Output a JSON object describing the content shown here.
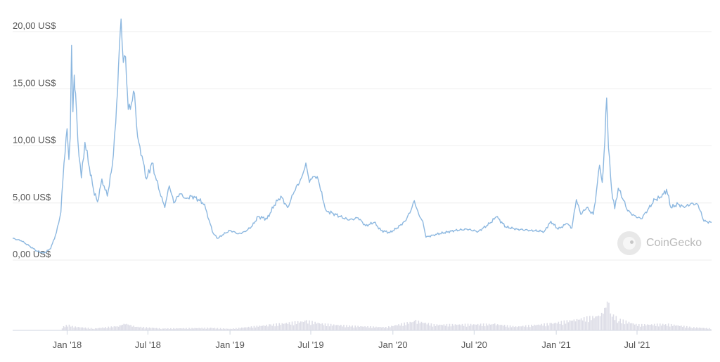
{
  "chart_data": {
    "type": "line",
    "title": "",
    "xlabel": "",
    "ylabel": "",
    "ylim": [
      0,
      20
    ],
    "y_ticks": [
      "0,00 US$",
      "5,00 US$",
      "10,00 US$",
      "15,00 US$",
      "20,00 US$"
    ],
    "y_tick_values": [
      0,
      5,
      10,
      15,
      20
    ],
    "x_ticks": [
      "Jan '18",
      "Jul '18",
      "Jan '19",
      "Jul '19",
      "Jan '20",
      "Jul '20",
      "Jan '21",
      "Jul '21"
    ],
    "x_tick_dates": [
      "2018-01-01",
      "2018-07-01",
      "2019-01-01",
      "2019-07-01",
      "2020-01-01",
      "2020-07-01",
      "2021-01-01",
      "2021-07-01"
    ],
    "x_range": [
      "2017-09-01",
      "2021-12-15"
    ],
    "grid": true,
    "colors": {
      "price_line": "#8db8e0",
      "volume_bars": "#dcdce6",
      "grid": "#eeeeee"
    },
    "series": [
      {
        "values_label": "price",
        "points": [
          [
            "2017-09-01",
            1.9
          ],
          [
            "2017-09-20",
            1.7
          ],
          [
            "2017-10-10",
            1.2
          ],
          [
            "2017-10-25",
            0.8
          ],
          [
            "2017-11-10",
            0.6
          ],
          [
            "2017-11-25",
            1.0
          ],
          [
            "2017-12-08",
            2.4
          ],
          [
            "2017-12-18",
            4.2
          ],
          [
            "2017-12-25",
            8.5
          ],
          [
            "2018-01-01",
            11.5
          ],
          [
            "2018-01-05",
            8.8
          ],
          [
            "2018-01-08",
            10.8
          ],
          [
            "2018-01-11",
            18.8
          ],
          [
            "2018-01-14",
            13.0
          ],
          [
            "2018-01-17",
            16.2
          ],
          [
            "2018-01-20",
            14.6
          ],
          [
            "2018-01-25",
            10.5
          ],
          [
            "2018-02-02",
            7.2
          ],
          [
            "2018-02-10",
            10.3
          ],
          [
            "2018-02-20",
            8.1
          ],
          [
            "2018-03-01",
            6.2
          ],
          [
            "2018-03-10",
            5.1
          ],
          [
            "2018-03-20",
            7.1
          ],
          [
            "2018-04-01",
            5.6
          ],
          [
            "2018-04-12",
            8.2
          ],
          [
            "2018-04-20",
            12.0
          ],
          [
            "2018-04-26",
            16.8
          ],
          [
            "2018-05-02",
            21.1
          ],
          [
            "2018-05-07",
            17.3
          ],
          [
            "2018-05-12",
            17.8
          ],
          [
            "2018-05-18",
            13.2
          ],
          [
            "2018-05-25",
            13.7
          ],
          [
            "2018-06-01",
            14.6
          ],
          [
            "2018-06-08",
            10.8
          ],
          [
            "2018-06-18",
            9.1
          ],
          [
            "2018-06-28",
            7.1
          ],
          [
            "2018-07-10",
            8.5
          ],
          [
            "2018-07-20",
            7.0
          ],
          [
            "2018-07-30",
            5.6
          ],
          [
            "2018-08-08",
            4.6
          ],
          [
            "2018-08-18",
            6.5
          ],
          [
            "2018-08-28",
            5.0
          ],
          [
            "2018-09-10",
            5.8
          ],
          [
            "2018-09-25",
            5.4
          ],
          [
            "2018-10-08",
            5.6
          ],
          [
            "2018-10-22",
            5.3
          ],
          [
            "2018-11-05",
            4.9
          ],
          [
            "2018-11-15",
            3.5
          ],
          [
            "2018-11-25",
            2.3
          ],
          [
            "2018-12-05",
            1.9
          ],
          [
            "2018-12-15",
            2.2
          ],
          [
            "2019-01-01",
            2.6
          ],
          [
            "2019-01-20",
            2.3
          ],
          [
            "2019-02-05",
            2.5
          ],
          [
            "2019-02-20",
            3.0
          ],
          [
            "2019-03-05",
            3.8
          ],
          [
            "2019-03-25",
            3.6
          ],
          [
            "2019-04-10",
            4.8
          ],
          [
            "2019-04-25",
            5.6
          ],
          [
            "2019-05-10",
            4.6
          ],
          [
            "2019-05-25",
            6.0
          ],
          [
            "2019-06-10",
            7.2
          ],
          [
            "2019-06-20",
            8.5
          ],
          [
            "2019-06-28",
            6.8
          ],
          [
            "2019-07-08",
            7.3
          ],
          [
            "2019-07-18",
            7.0
          ],
          [
            "2019-07-28",
            5.3
          ],
          [
            "2019-08-05",
            4.3
          ],
          [
            "2019-08-20",
            4.1
          ],
          [
            "2019-09-05",
            3.8
          ],
          [
            "2019-09-25",
            3.5
          ],
          [
            "2019-10-15",
            3.7
          ],
          [
            "2019-11-01",
            3.0
          ],
          [
            "2019-11-20",
            3.3
          ],
          [
            "2019-12-05",
            2.6
          ],
          [
            "2019-12-25",
            2.4
          ],
          [
            "2020-01-10",
            2.8
          ],
          [
            "2020-01-28",
            3.4
          ],
          [
            "2020-02-10",
            4.3
          ],
          [
            "2020-02-18",
            5.2
          ],
          [
            "2020-02-28",
            4.0
          ],
          [
            "2020-03-08",
            3.4
          ],
          [
            "2020-03-15",
            2.0
          ],
          [
            "2020-04-01",
            2.2
          ],
          [
            "2020-04-25",
            2.4
          ],
          [
            "2020-05-20",
            2.6
          ],
          [
            "2020-06-15",
            2.7
          ],
          [
            "2020-07-10",
            2.5
          ],
          [
            "2020-08-05",
            3.2
          ],
          [
            "2020-08-20",
            3.8
          ],
          [
            "2020-09-10",
            2.9
          ],
          [
            "2020-10-05",
            2.7
          ],
          [
            "2020-11-05",
            2.6
          ],
          [
            "2020-12-05",
            2.5
          ],
          [
            "2020-12-20",
            3.4
          ],
          [
            "2021-01-05",
            2.7
          ],
          [
            "2021-01-25",
            3.2
          ],
          [
            "2021-02-05",
            2.8
          ],
          [
            "2021-02-15",
            5.3
          ],
          [
            "2021-02-25",
            4.0
          ],
          [
            "2021-03-10",
            4.6
          ],
          [
            "2021-03-25",
            4.0
          ],
          [
            "2021-04-01",
            6.0
          ],
          [
            "2021-04-08",
            8.3
          ],
          [
            "2021-04-14",
            6.8
          ],
          [
            "2021-04-20",
            10.5
          ],
          [
            "2021-04-24",
            14.2
          ],
          [
            "2021-04-28",
            9.8
          ],
          [
            "2021-05-05",
            6.2
          ],
          [
            "2021-05-12",
            4.5
          ],
          [
            "2021-05-20",
            6.3
          ],
          [
            "2021-06-01",
            5.2
          ],
          [
            "2021-06-10",
            4.3
          ],
          [
            "2021-06-25",
            3.9
          ],
          [
            "2021-07-10",
            3.6
          ],
          [
            "2021-07-25",
            4.4
          ],
          [
            "2021-08-10",
            5.3
          ],
          [
            "2021-08-25",
            5.5
          ],
          [
            "2021-09-05",
            6.2
          ],
          [
            "2021-09-15",
            4.6
          ],
          [
            "2021-10-01",
            4.9
          ],
          [
            "2021-10-15",
            4.6
          ],
          [
            "2021-11-01",
            5.0
          ],
          [
            "2021-11-15",
            4.8
          ],
          [
            "2021-11-28",
            3.4
          ],
          [
            "2021-12-15",
            3.3
          ]
        ]
      },
      {
        "values_label": "volume",
        "points": [
          [
            "2017-12-20",
            0.1
          ],
          [
            "2018-01-01",
            0.18
          ],
          [
            "2018-01-15",
            0.12
          ],
          [
            "2018-03-01",
            0.06
          ],
          [
            "2018-04-25",
            0.14
          ],
          [
            "2018-05-10",
            0.22
          ],
          [
            "2018-06-01",
            0.12
          ],
          [
            "2018-08-01",
            0.06
          ],
          [
            "2018-11-20",
            0.08
          ],
          [
            "2019-01-01",
            0.05
          ],
          [
            "2019-04-01",
            0.18
          ],
          [
            "2019-06-20",
            0.3
          ],
          [
            "2019-08-01",
            0.2
          ],
          [
            "2019-10-01",
            0.14
          ],
          [
            "2019-12-15",
            0.1
          ],
          [
            "2020-02-20",
            0.3
          ],
          [
            "2020-04-01",
            0.18
          ],
          [
            "2020-08-15",
            0.2
          ],
          [
            "2020-10-01",
            0.12
          ],
          [
            "2020-12-20",
            0.22
          ],
          [
            "2021-02-15",
            0.35
          ],
          [
            "2021-04-01",
            0.45
          ],
          [
            "2021-04-15",
            0.55
          ],
          [
            "2021-04-24",
            1.0
          ],
          [
            "2021-05-05",
            0.5
          ],
          [
            "2021-05-20",
            0.35
          ],
          [
            "2021-07-01",
            0.18
          ],
          [
            "2021-09-05",
            0.2
          ],
          [
            "2021-11-01",
            0.1
          ],
          [
            "2021-12-15",
            0.06
          ]
        ]
      }
    ]
  },
  "watermark": {
    "text": "CoinGecko",
    "icon": "gecko-logo-icon"
  }
}
